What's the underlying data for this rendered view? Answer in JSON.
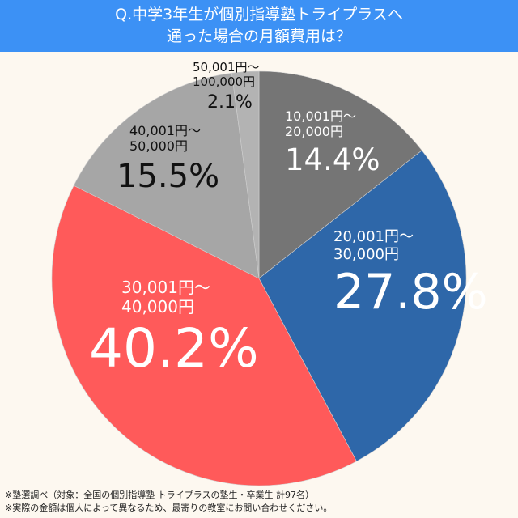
{
  "header": {
    "title_line1": "Q.中学3年生が個別指導塾トライプラスへ",
    "title_line2": "通った場合の月額費用は？",
    "bg_color": "#3c91f5"
  },
  "chart_data": {
    "type": "pie",
    "title": "Q.中学3年生が個別指導塾トライプラスへ通った場合の月額費用は？",
    "start_angle_deg": 0,
    "direction": "clockwise",
    "slices": [
      {
        "range_line1": "10,001円～",
        "range_line2": "20,000円",
        "label": "10,001円～20,000円",
        "value": 14.4,
        "pct_text": "14.4%",
        "color": "#757575",
        "text_color": "#ffffff"
      },
      {
        "range_line1": "20,001円～",
        "range_line2": "30,000円",
        "label": "20,001円～30,000円",
        "value": 27.8,
        "pct_text": "27.8%",
        "color": "#2e67a9",
        "text_color": "#ffffff"
      },
      {
        "range_line1": "30,001円～",
        "range_line2": "40,000円",
        "label": "30,001円～40,000円",
        "value": 40.2,
        "pct_text": "40.2%",
        "color": "#ff5a5a",
        "text_color": "#ffffff"
      },
      {
        "range_line1": "40,001円～",
        "range_line2": "50,000円",
        "label": "40,001円～50,000円",
        "value": 15.5,
        "pct_text": "15.5%",
        "color": "#a6a6a6",
        "text_color": "#111111"
      },
      {
        "range_line1": "50,001円～",
        "range_line2": "100,000円",
        "label": "50,001円～100,000円",
        "value": 2.1,
        "pct_text": "2.1%",
        "color": "#b3b3b3",
        "text_color": "#111111"
      }
    ]
  },
  "footer": {
    "note1": "※塾選調べ（対象：全国の個別指導塾 トライプラスの塾生・卒業生 計97名）",
    "note2": "※実際の金額は個人によって異なるため、最寄りの教室にお問い合わせください。"
  }
}
